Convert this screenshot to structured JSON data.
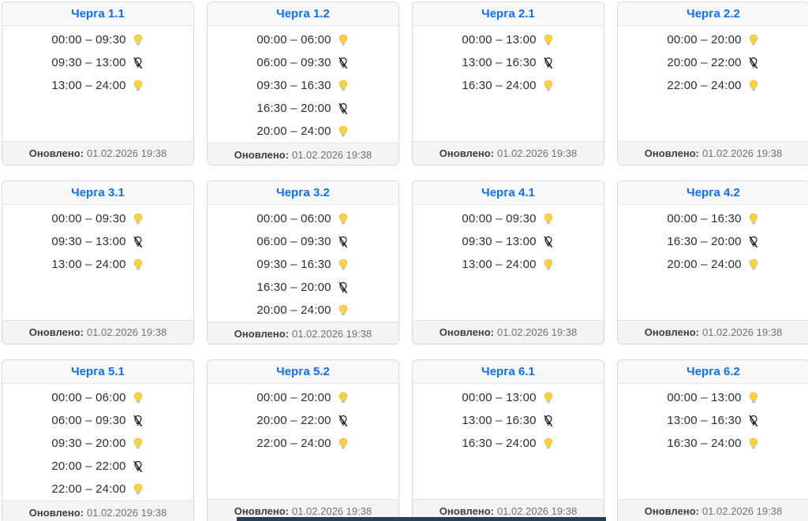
{
  "updated_label": "Оновлено:",
  "updated_value": "01.02.2026 19:38",
  "colors": {
    "title_blue": "#0d6efd",
    "bulb_yellow": "#ffd43b",
    "bulb_off_dark": "#1c1c1c",
    "bar_navy": "#2b3e57"
  },
  "cards": [
    {
      "title": "Черга 1.1",
      "slots": [
        {
          "time": "00:00 – 09:30",
          "state": "on"
        },
        {
          "time": "09:30 – 13:00",
          "state": "off"
        },
        {
          "time": "13:00 – 24:00",
          "state": "on"
        }
      ]
    },
    {
      "title": "Черга 1.2",
      "slots": [
        {
          "time": "00:00 – 06:00",
          "state": "on"
        },
        {
          "time": "06:00 – 09:30",
          "state": "off"
        },
        {
          "time": "09:30 – 16:30",
          "state": "on"
        },
        {
          "time": "16:30 – 20:00",
          "state": "off"
        },
        {
          "time": "20:00 – 24:00",
          "state": "on"
        }
      ]
    },
    {
      "title": "Черга 2.1",
      "slots": [
        {
          "time": "00:00 – 13:00",
          "state": "on"
        },
        {
          "time": "13:00 – 16:30",
          "state": "off"
        },
        {
          "time": "16:30 – 24:00",
          "state": "on"
        }
      ]
    },
    {
      "title": "Черга 2.2",
      "slots": [
        {
          "time": "00:00 – 20:00",
          "state": "on"
        },
        {
          "time": "20:00 – 22:00",
          "state": "off"
        },
        {
          "time": "22:00 – 24:00",
          "state": "on"
        }
      ]
    },
    {
      "title": "Черга 3.1",
      "slots": [
        {
          "time": "00:00 – 09:30",
          "state": "on"
        },
        {
          "time": "09:30 – 13:00",
          "state": "off"
        },
        {
          "time": "13:00 – 24:00",
          "state": "on"
        }
      ]
    },
    {
      "title": "Черга 3.2",
      "slots": [
        {
          "time": "00:00 – 06:00",
          "state": "on"
        },
        {
          "time": "06:00 – 09:30",
          "state": "off"
        },
        {
          "time": "09:30 – 16:30",
          "state": "on"
        },
        {
          "time": "16:30 – 20:00",
          "state": "off"
        },
        {
          "time": "20:00 – 24:00",
          "state": "on"
        }
      ]
    },
    {
      "title": "Черга 4.1",
      "slots": [
        {
          "time": "00:00 – 09:30",
          "state": "on"
        },
        {
          "time": "09:30 – 13:00",
          "state": "off"
        },
        {
          "time": "13:00 – 24:00",
          "state": "on"
        }
      ]
    },
    {
      "title": "Черга 4.2",
      "slots": [
        {
          "time": "00:00 – 16:30",
          "state": "on"
        },
        {
          "time": "16:30 – 20:00",
          "state": "off"
        },
        {
          "time": "20:00 – 24:00",
          "state": "on"
        }
      ]
    },
    {
      "title": "Черга 5.1",
      "slots": [
        {
          "time": "00:00 – 06:00",
          "state": "on"
        },
        {
          "time": "06:00 – 09:30",
          "state": "off"
        },
        {
          "time": "09:30 – 20:00",
          "state": "on"
        },
        {
          "time": "20:00 – 22:00",
          "state": "off"
        },
        {
          "time": "22:00 – 24:00",
          "state": "on"
        }
      ]
    },
    {
      "title": "Черга 5.2",
      "slots": [
        {
          "time": "00:00 – 20:00",
          "state": "on"
        },
        {
          "time": "20:00 – 22:00",
          "state": "off"
        },
        {
          "time": "22:00 – 24:00",
          "state": "on"
        }
      ]
    },
    {
      "title": "Черга 6.1",
      "slots": [
        {
          "time": "00:00 – 13:00",
          "state": "on"
        },
        {
          "time": "13:00 – 16:30",
          "state": "off"
        },
        {
          "time": "16:30 – 24:00",
          "state": "on"
        }
      ]
    },
    {
      "title": "Черга 6.2",
      "slots": [
        {
          "time": "00:00 – 13:00",
          "state": "on"
        },
        {
          "time": "13:00 – 16:30",
          "state": "off"
        },
        {
          "time": "16:30 – 24:00",
          "state": "on"
        }
      ]
    }
  ]
}
